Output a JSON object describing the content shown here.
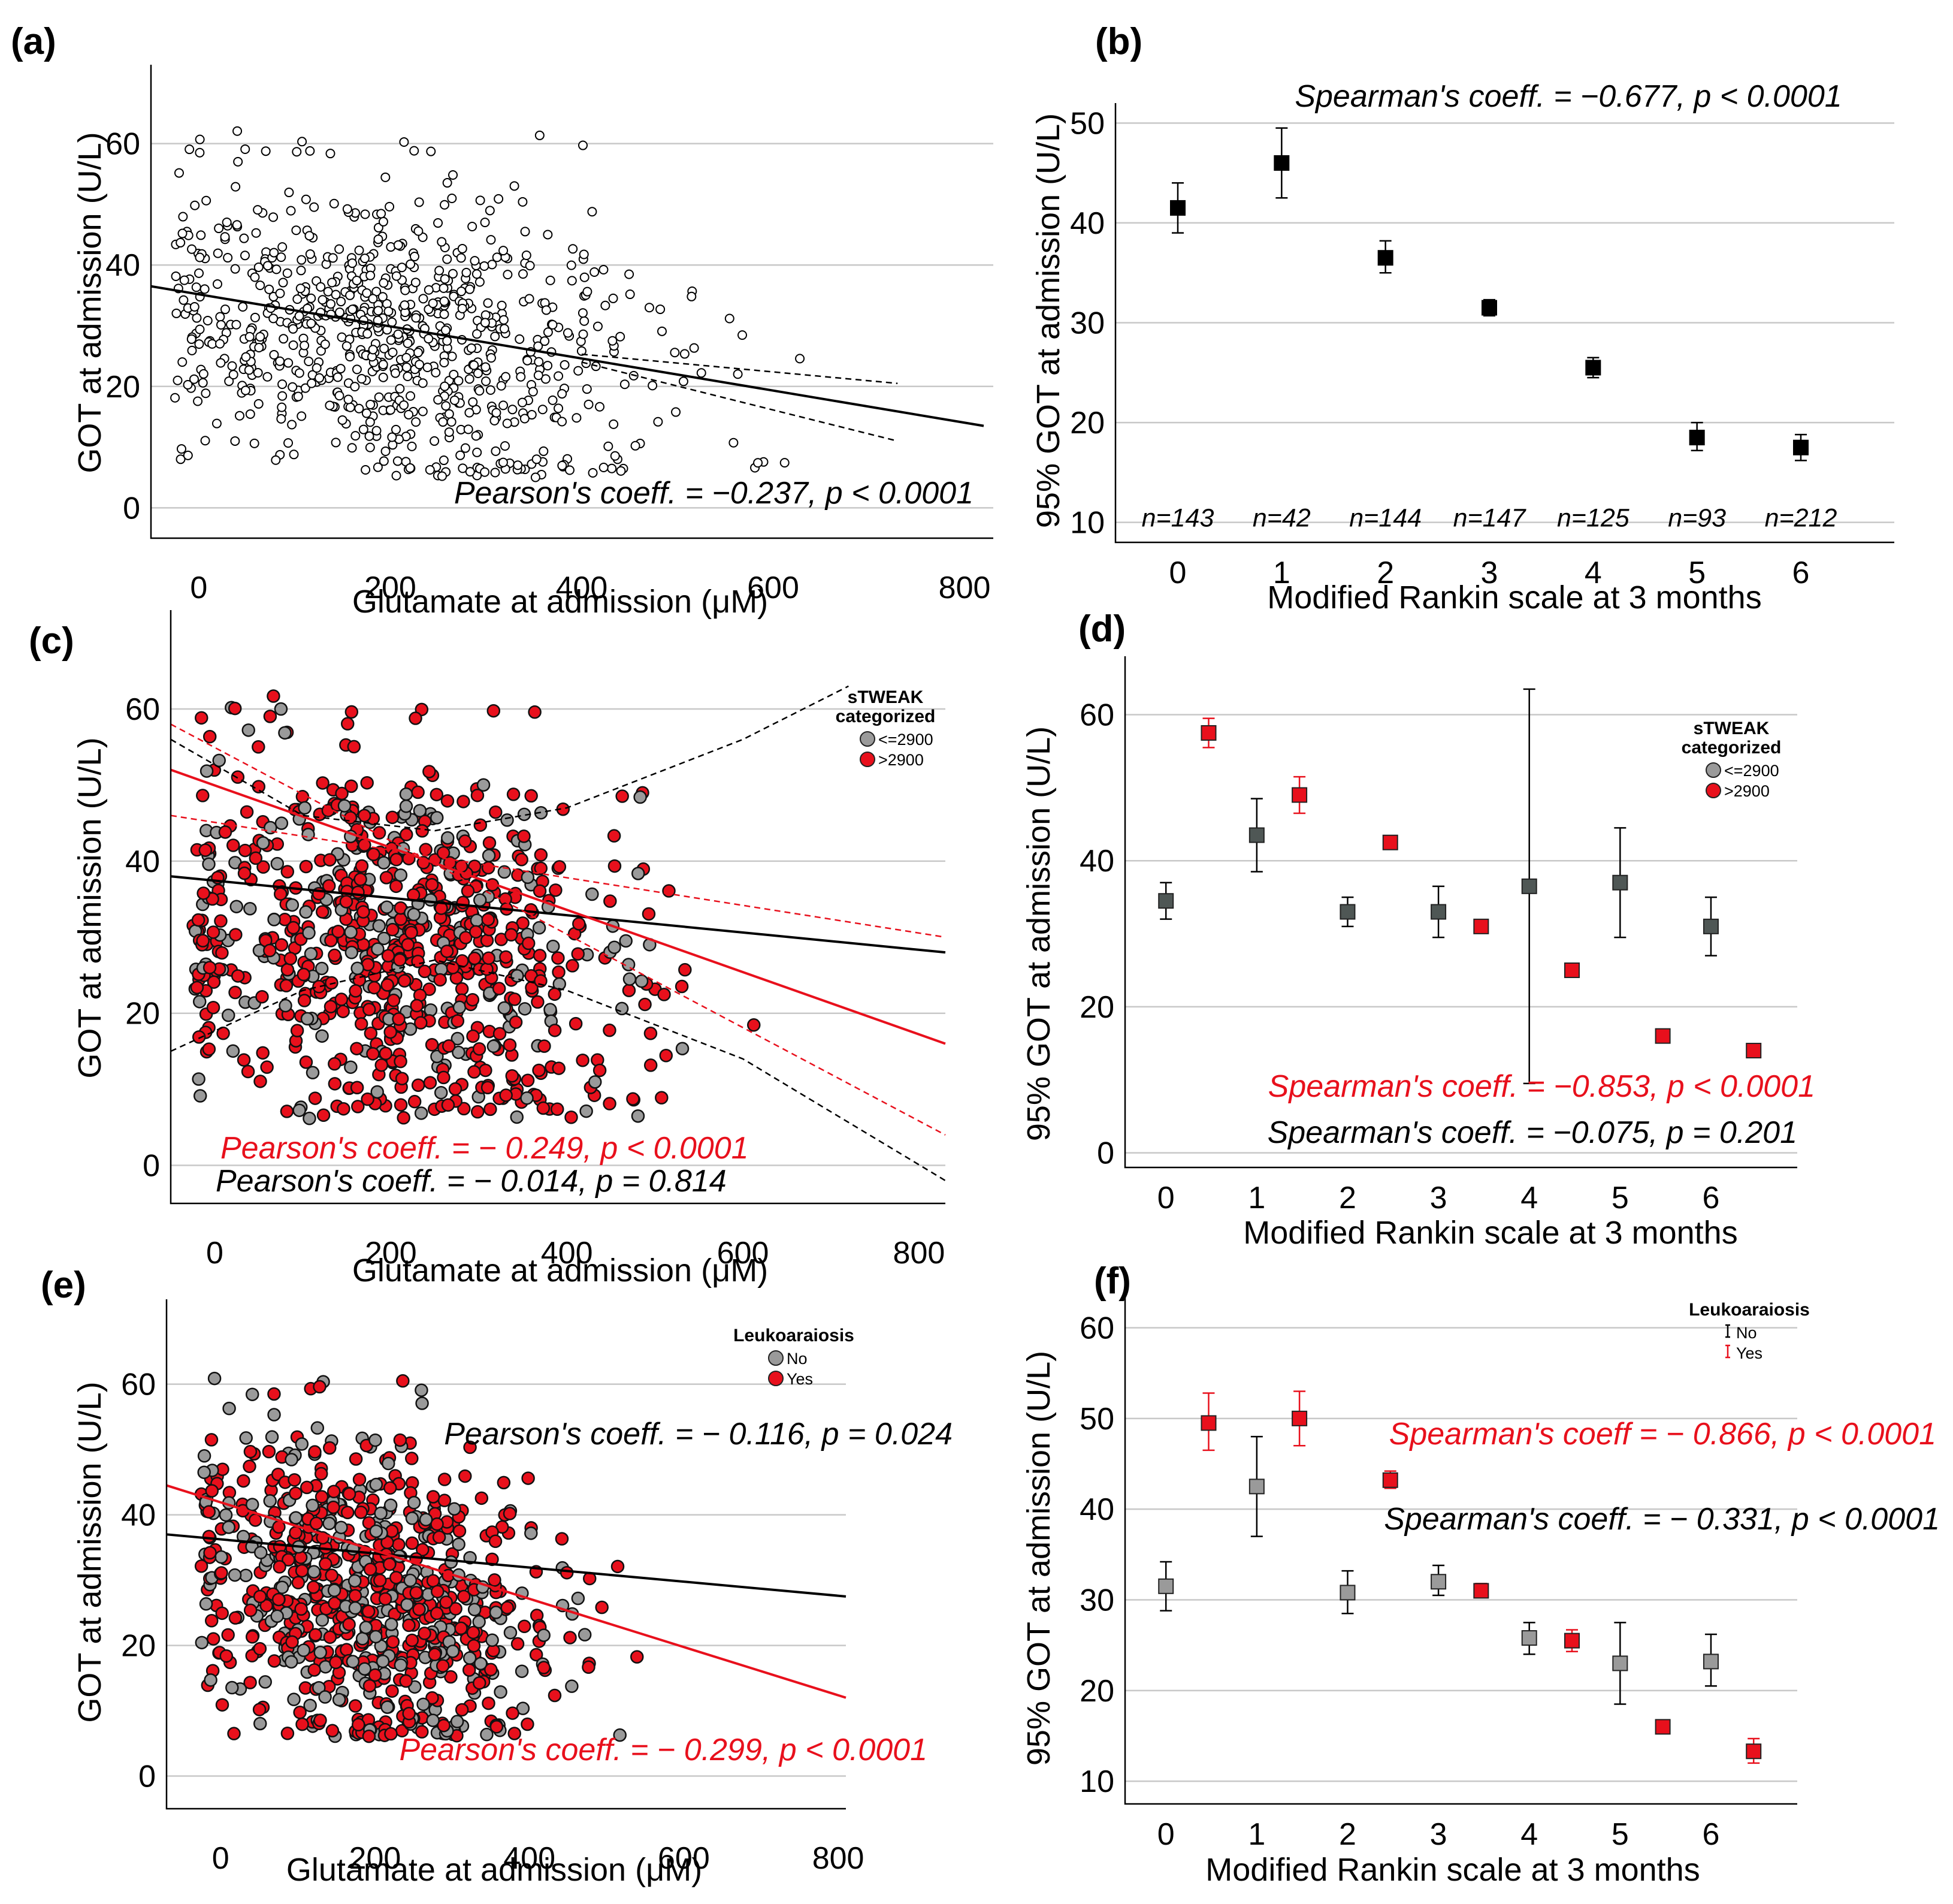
{
  "colors": {
    "red": "#e8101c",
    "grey": "#9a9a9a",
    "darkgrey": "#4f5755",
    "black": "#000000",
    "grid": "#c8c8c8"
  },
  "chart_data": [
    {
      "id": "a",
      "letter": "(a)",
      "type": "scatter",
      "xlabel": "Glutamate at admission (μM)",
      "ylabel": "GOT at admission (U/L)",
      "xlim": [
        -50,
        830
      ],
      "ylim": [
        -5,
        73
      ],
      "xticks": [
        0,
        200,
        400,
        600,
        800
      ],
      "yticks": [
        0,
        20,
        40,
        60
      ],
      "gridlines": [
        0,
        20,
        40,
        60
      ],
      "marker": "open-circle",
      "fit_lines": [
        {
          "name": "fit",
          "x": [
            -50,
            820
          ],
          "y": [
            36.5,
            13.5
          ],
          "style": "solid",
          "color": "#000000"
        },
        {
          "name": "ci-upper",
          "x": [
            400,
            730
          ],
          "y": [
            25.3,
            20.5
          ],
          "style": "dashed",
          "color": "#000000"
        },
        {
          "name": "ci-lower",
          "x": [
            400,
            730
          ],
          "y": [
            24.0,
            11.0
          ],
          "style": "dashed",
          "color": "#000000"
        }
      ],
      "annotations": [
        {
          "text": "Pearson's coeff. = −0.237, p < 0.0001",
          "color": "#000000"
        }
      ],
      "n_points": 820,
      "x_dist_mean": 200,
      "x_dist_sd": 130,
      "y_min": 5,
      "y_max": 66,
      "intercept": 34.5,
      "slope": -0.027
    },
    {
      "id": "b",
      "letter": "(b)",
      "type": "errorbar",
      "title": "Spearman's coeff. = −0.677, p < 0.0001",
      "xlabel": "Modified Rankin scale at 3 months",
      "ylabel": "95% GOT at admission (U/L)",
      "categories": [
        "0",
        "1",
        "2",
        "3",
        "4",
        "5",
        "6"
      ],
      "xlim": [
        -0.6,
        6.9
      ],
      "ylim": [
        8,
        52
      ],
      "yticks": [
        10,
        20,
        30,
        40,
        50
      ],
      "gridlines": [
        10,
        20,
        30,
        40,
        50
      ],
      "series": [
        {
          "name": "all",
          "color": "#000000",
          "offset": 0,
          "values": [
            41.5,
            46.0,
            36.5,
            31.5,
            25.5,
            18.5,
            17.5
          ],
          "lower": [
            39.0,
            42.5,
            35.0,
            30.7,
            24.5,
            17.2,
            16.2
          ],
          "upper": [
            44.0,
            49.5,
            38.2,
            32.3,
            26.5,
            20.0,
            18.8
          ]
        }
      ],
      "n_labels": [
        "n=143",
        "n=42",
        "n=144",
        "n=147",
        "n=125",
        "n=93",
        "n=212"
      ],
      "n_label_y": 10.5
    },
    {
      "id": "c",
      "letter": "(c)",
      "type": "scatter",
      "xlabel": "Glutamate at admission (μM)",
      "ylabel": "GOT at admission (U/L)",
      "xlim": [
        -50,
        830
      ],
      "ylim": [
        -5,
        73
      ],
      "xticks": [
        0,
        200,
        400,
        600,
        800
      ],
      "yticks": [
        0,
        20,
        40,
        60
      ],
      "gridlines": [
        0,
        20,
        40,
        60
      ],
      "marker": "filled-circle",
      "legend": {
        "title": [
          "sTWEAK",
          "categorized"
        ],
        "items": [
          {
            "label": "<=2900",
            "color": "#9a9a9a"
          },
          {
            "label": ">2900",
            "color": "#e8101c"
          }
        ],
        "placement": "top-right"
      },
      "fit_lines": [
        {
          "name": "grey-fit",
          "x": [
            -50,
            830
          ],
          "y": [
            38.0,
            28.0
          ],
          "style": "solid",
          "color": "#000000"
        },
        {
          "name": "red-fit",
          "x": [
            -50,
            830
          ],
          "y": [
            52.0,
            16.0
          ],
          "style": "solid",
          "color": "#e8101c"
        },
        {
          "name": "red-ci-upper",
          "x": [
            -50,
            830
          ],
          "y": [
            46.0,
            30.0
          ],
          "style": "dashed",
          "color": "#e8101c"
        },
        {
          "name": "red-ci-lower",
          "x": [
            -50,
            830
          ],
          "y": [
            58.0,
            4.0
          ],
          "style": "dashed",
          "color": "#e8101c"
        }
      ],
      "curves": [
        {
          "name": "grey-ci-upper",
          "x": [
            -50,
            100,
            250,
            400,
            600,
            720
          ],
          "y": [
            56.0,
            46.0,
            44.0,
            47.0,
            56.0,
            63.0
          ],
          "style": "dashed",
          "color": "#000000"
        },
        {
          "name": "grey-ci-lower",
          "x": [
            -50,
            100,
            250,
            400,
            600,
            830
          ],
          "y": [
            15.0,
            23.0,
            27.0,
            23.0,
            14.0,
            -2.0
          ],
          "style": "dashed",
          "color": "#000000"
        }
      ],
      "annotations": [
        {
          "text": "Pearson's coeff. = − 0.249, p < 0.0001",
          "color": "#e8101c"
        },
        {
          "text": "Pearson's coeff. = − 0.014, p = 0.814",
          "color": "#000000"
        }
      ],
      "n_points": 820,
      "x_dist_mean": 210,
      "x_dist_sd": 130,
      "y_min": 6,
      "y_max": 66,
      "intercept": 33.0,
      "slope": -0.02,
      "red_fraction": 0.72
    },
    {
      "id": "d",
      "letter": "(d)",
      "type": "errorbar",
      "xlabel": "Modified Rankin scale at 3 months",
      "ylabel": "95% GOT at admission (U/L)",
      "categories": [
        "0",
        "1",
        "2",
        "3",
        "4",
        "5",
        "6"
      ],
      "xlim": [
        -0.45,
        6.95
      ],
      "ylim": [
        -2,
        68
      ],
      "yticks": [
        0,
        20,
        40,
        60
      ],
      "gridlines": [
        0,
        20,
        40,
        60
      ],
      "legend": {
        "title": [
          "sTWEAK",
          "categorized"
        ],
        "items": [
          {
            "label": "<=2900",
            "color": "#9a9a9a"
          },
          {
            "label": ">2900",
            "color": "#e8101c"
          }
        ],
        "placement": "top-right"
      },
      "series": [
        {
          "name": "<=2900",
          "color": "#4f5755",
          "offset": 0,
          "values": [
            34.5,
            43.5,
            33.0,
            33.0,
            36.5,
            37.0,
            31.0
          ],
          "lower": [
            32.0,
            38.5,
            31.0,
            29.5,
            9.5,
            29.5,
            27.0
          ],
          "upper": [
            37.0,
            48.5,
            35.0,
            36.5,
            63.5,
            44.5,
            35.0
          ]
        },
        {
          "name": ">2900",
          "color": "#e8101c",
          "offset": 0.47,
          "values": [
            57.5,
            49.0,
            42.5,
            31.0,
            25.0,
            16.0,
            14.0
          ],
          "lower": [
            55.5,
            46.5,
            42.5,
            31.0,
            25.0,
            16.0,
            14.0
          ],
          "upper": [
            59.5,
            51.5,
            42.5,
            31.0,
            25.0,
            16.0,
            14.0
          ]
        }
      ],
      "annotations": [
        {
          "text": "Spearman's coeff. = −0.853, p < 0.0001",
          "color": "#e8101c"
        },
        {
          "text": "Spearman's coeff. = −0.075, p = 0.201",
          "color": "#000000"
        }
      ]
    },
    {
      "id": "e",
      "letter": "(e)",
      "type": "scatter",
      "xlabel": "Glutamate at admission (μM)",
      "ylabel": "GOT at admission (U/L)",
      "xlim": [
        -70,
        810
      ],
      "ylim": [
        -5,
        73
      ],
      "xticks": [
        0,
        200,
        400,
        600,
        800
      ],
      "yticks": [
        0,
        20,
        40,
        60
      ],
      "gridlines": [
        0,
        20,
        40,
        60
      ],
      "marker": "filled-circle",
      "legend": {
        "title": [
          "Leukoaraiosis"
        ],
        "items": [
          {
            "label": "No",
            "color": "#9a9a9a"
          },
          {
            "label": "Yes",
            "color": "#e8101c"
          }
        ],
        "placement": "top-right"
      },
      "fit_lines": [
        {
          "name": "no-fit",
          "x": [
            -70,
            810
          ],
          "y": [
            37.0,
            27.5
          ],
          "style": "solid",
          "color": "#000000"
        },
        {
          "name": "yes-fit",
          "x": [
            -70,
            810
          ],
          "y": [
            44.5,
            12.0
          ],
          "style": "solid",
          "color": "#e8101c"
        }
      ],
      "annotations": [
        {
          "text": "Pearson's coeff. = − 0.116, p = 0.024",
          "color": "#000000"
        },
        {
          "text": "Pearson's coeff. = − 0.299, p < 0.0001",
          "color": "#e8101c"
        }
      ],
      "n_points": 820,
      "x_dist_mean": 190,
      "x_dist_sd": 120,
      "y_min": 6,
      "y_max": 66,
      "intercept": 32.0,
      "slope": -0.025,
      "red_fraction": 0.62
    },
    {
      "id": "f",
      "letter": "(f)",
      "type": "errorbar",
      "xlabel": "Modified Rankin scale at 3 months",
      "ylabel": "95% GOT at admission (U/L)",
      "categories": [
        "0",
        "1",
        "2",
        "3",
        "4",
        "5",
        "6"
      ],
      "xlim": [
        -0.45,
        6.95
      ],
      "ylim": [
        7.5,
        64
      ],
      "yticks": [
        10,
        20,
        30,
        40,
        50,
        60
      ],
      "gridlines": [
        10,
        20,
        30,
        40,
        50,
        60
      ],
      "legend": {
        "title": [
          "Leukoaraiosis"
        ],
        "items": [
          {
            "label": "No",
            "color": "#000000"
          },
          {
            "label": "Yes",
            "color": "#e8101c"
          }
        ],
        "placement": "top-right"
      },
      "series": [
        {
          "name": "No",
          "color": "#9a9a9a",
          "offset": 0,
          "values": [
            31.5,
            42.5,
            30.8,
            32.0,
            25.8,
            23.0,
            23.2
          ],
          "lower": [
            28.8,
            37.0,
            28.5,
            30.5,
            24.0,
            18.5,
            20.5
          ],
          "upper": [
            34.2,
            48.0,
            33.2,
            33.8,
            27.5,
            27.5,
            26.2
          ]
        },
        {
          "name": "Yes",
          "color": "#e8101c",
          "offset": 0.47,
          "values": [
            49.5,
            50.0,
            43.2,
            31.0,
            25.5,
            16.0,
            13.3
          ],
          "lower": [
            46.5,
            47.0,
            42.3,
            30.3,
            24.3,
            15.3,
            12.0
          ],
          "upper": [
            52.8,
            53.0,
            44.2,
            31.8,
            26.7,
            16.7,
            14.7
          ]
        }
      ],
      "annotations": [
        {
          "text": "Spearman's coeff = − 0.866, p < 0.0001",
          "color": "#e8101c"
        },
        {
          "text": "Spearman's coeff. = − 0.331, p < 0.0001",
          "color": "#000000"
        }
      ]
    }
  ]
}
